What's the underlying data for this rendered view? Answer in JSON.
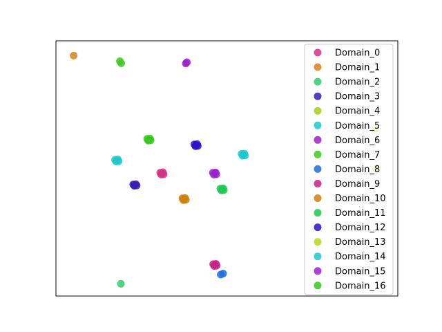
{
  "chart_data": {
    "type": "scatter",
    "title": "",
    "xlabel": "",
    "ylabel": "",
    "xlim": [
      0,
      100
    ],
    "ylim": [
      0,
      100
    ],
    "xticks_visible": false,
    "yticks_visible": false,
    "grid": false,
    "legend_placement": "top-right",
    "series": [
      {
        "name": "Domain_0",
        "color": "#d63384",
        "points": [
          [
            31.0,
            48.0
          ],
          [
            30.5,
            48.3
          ],
          [
            31.5,
            47.7
          ],
          [
            30.8,
            47.6
          ],
          [
            31.3,
            48.5
          ]
        ]
      },
      {
        "name": "Domain_1",
        "color": "#d9821e",
        "points": [
          [
            5.2,
            94.2
          ]
        ]
      },
      {
        "name": "Domain_2",
        "color": "#2ecc71",
        "points": [
          [
            19.0,
            4.8
          ]
        ]
      },
      {
        "name": "Domain_3",
        "color": "#3a1fb8",
        "points": [
          [
            23.1,
            43.5
          ],
          [
            22.6,
            43.7
          ],
          [
            23.6,
            43.3
          ],
          [
            22.9,
            43.2
          ],
          [
            23.4,
            43.8
          ]
        ]
      },
      {
        "name": "Domain_4",
        "color": "#a8cf1f",
        "points": [
          [
            93.6,
            49.7
          ]
        ]
      },
      {
        "name": "Domain_5",
        "color": "#1fc9c9",
        "points": [
          [
            17.8,
            53.1
          ],
          [
            17.3,
            53.4
          ],
          [
            18.3,
            52.8
          ],
          [
            17.6,
            52.7
          ],
          [
            18.1,
            53.5
          ]
        ]
      },
      {
        "name": "Domain_6",
        "color": "#a01fc9",
        "points": [
          [
            38.0,
            91.1
          ],
          [
            38.3,
            91.6
          ]
        ]
      },
      {
        "name": "Domain_7",
        "color": "#3ec91f",
        "points": [
          [
            18.7,
            92.0
          ],
          [
            19.1,
            91.2
          ]
        ]
      },
      {
        "name": "Domain_8",
        "color": "#1f6fd9",
        "points": [
          [
            48.2,
            8.4
          ],
          [
            48.9,
            8.8
          ]
        ]
      },
      {
        "name": "Domain_9",
        "color": "#c81f88",
        "points": [
          [
            46.5,
            12.2
          ],
          [
            46.0,
            12.5
          ],
          [
            47.0,
            11.9
          ],
          [
            46.3,
            11.8
          ],
          [
            46.8,
            12.6
          ]
        ]
      },
      {
        "name": "Domain_10",
        "color": "#d0800a",
        "points": [
          [
            37.5,
            38.0
          ],
          [
            37.0,
            38.3
          ],
          [
            38.0,
            37.7
          ],
          [
            37.3,
            37.6
          ],
          [
            37.8,
            38.4
          ]
        ]
      },
      {
        "name": "Domain_11",
        "color": "#1fc94f",
        "points": [
          [
            48.6,
            41.8
          ],
          [
            48.1,
            42.1
          ],
          [
            49.1,
            41.5
          ],
          [
            48.4,
            41.4
          ],
          [
            48.9,
            42.2
          ]
        ]
      },
      {
        "name": "Domain_12",
        "color": "#2e10c8",
        "points": [
          [
            41.0,
            59.1
          ],
          [
            40.5,
            59.4
          ],
          [
            41.5,
            58.8
          ],
          [
            40.8,
            58.7
          ],
          [
            41.3,
            59.5
          ]
        ]
      },
      {
        "name": "Domain_13",
        "color": "#b8d81f",
        "points": [
          [
            93.4,
            65.4
          ]
        ]
      },
      {
        "name": "Domain_14",
        "color": "#1fc8c8",
        "points": [
          [
            54.8,
            55.4
          ],
          [
            54.3,
            55.7
          ],
          [
            55.3,
            55.1
          ],
          [
            54.6,
            55.0
          ],
          [
            55.1,
            55.8
          ]
        ]
      },
      {
        "name": "Domain_15",
        "color": "#9f1fd0",
        "points": [
          [
            46.4,
            48.0
          ],
          [
            45.9,
            48.3
          ],
          [
            46.9,
            47.7
          ],
          [
            46.2,
            47.6
          ],
          [
            46.7,
            48.4
          ]
        ]
      },
      {
        "name": "Domain_16",
        "color": "#37c81f",
        "points": [
          [
            27.2,
            61.3
          ],
          [
            26.7,
            61.6
          ],
          [
            27.7,
            61.0
          ],
          [
            27.0,
            60.9
          ],
          [
            27.5,
            61.7
          ]
        ]
      }
    ]
  }
}
